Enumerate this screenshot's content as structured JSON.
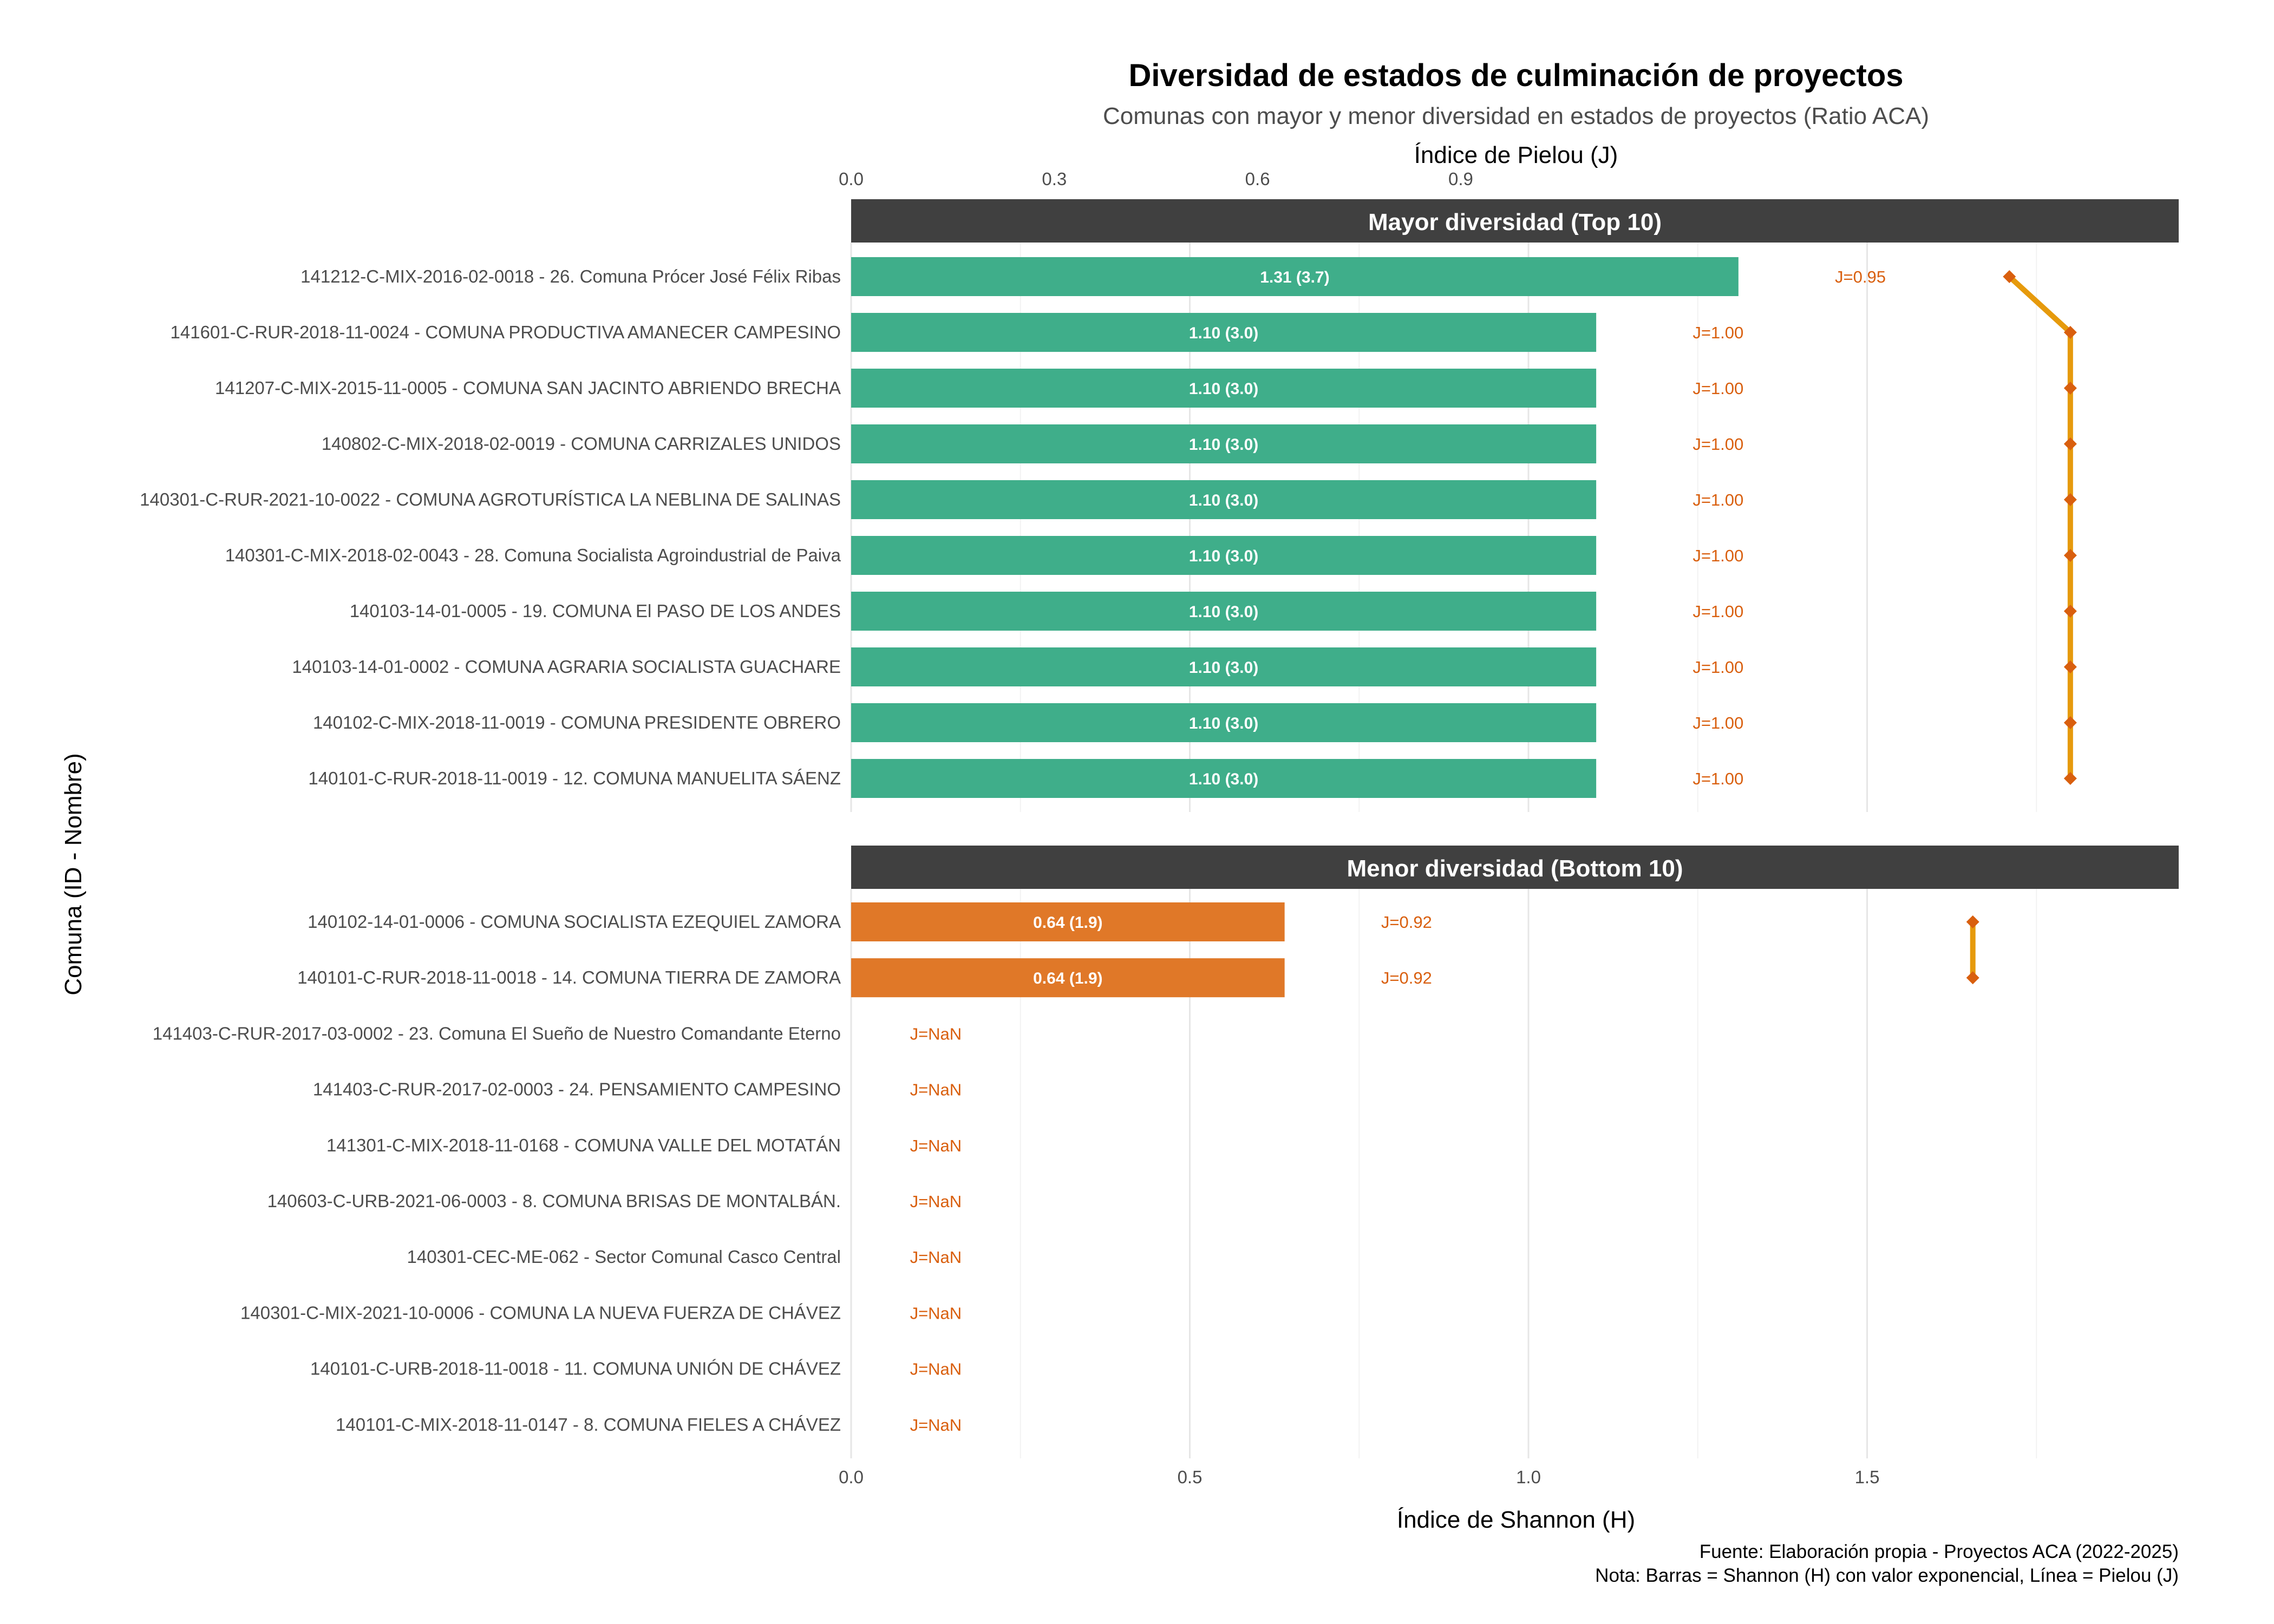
{
  "chart_data": {
    "type": "bar",
    "orientation": "horizontal",
    "title": "Diversidad de estados de culminación de proyectos",
    "subtitle": "Comunas con mayor y menor diversidad en estados de proyectos (Ratio ACA)",
    "xlabel": "Índice de Shannon (H)",
    "x2label": "Índice de Pielou (J)",
    "ylabel": "Comuna (ID - Nombre)",
    "xlim": [
      0,
      1.96
    ],
    "xticks": [
      0,
      0.5,
      1.0,
      1.5
    ],
    "xtick_labels": [
      "0.0",
      "0.5",
      "1.0",
      "1.5"
    ],
    "x2ticks": [
      0,
      0.3,
      0.6,
      0.9
    ],
    "x2tick_labels": [
      "0.0",
      "0.3",
      "0.6",
      "0.9"
    ],
    "pielou_scale_factor": 1.8,
    "grid": true,
    "caption_lines": [
      "Fuente: Elaboración propia - Proyectos ACA (2022-2025)",
      "Nota: Barras = Shannon (H) con valor exponencial, Línea = Pielou (J)"
    ],
    "colors": {
      "top_bar": "#3fae8a",
      "bottom_bar": "#e07828",
      "strip": "#404040",
      "j_label": "#d95f0e",
      "line": "#e69a0c",
      "point": "#d95f0e"
    },
    "panels": [
      {
        "name": "Mayor diversidad (Top 10)",
        "bar_color_key": "top_bar",
        "categories": [
          "141212-C-MIX-2016-02-0018 - 26. Comuna Prócer José Félix Ribas",
          "141601-C-RUR-2018-11-0024 - COMUNA PRODUCTIVA AMANECER CAMPESINO",
          "141207-C-MIX-2015-11-0005 - COMUNA SAN JACINTO ABRIENDO BRECHA",
          "140802-C-MIX-2018-02-0019 - COMUNA CARRIZALES UNIDOS",
          "140301-C-RUR-2021-10-0022 - COMUNA AGROTURÍSTICA LA NEBLINA DE SALINAS",
          "140301-C-MIX-2018-02-0043 - 28. Comuna Socialista Agroindustrial de Paiva",
          "140103-14-01-0005 - 19. COMUNA El PASO DE LOS ANDES",
          "140103-14-01-0002 - COMUNA AGRARIA SOCIALISTA GUACHARE",
          "140102-C-MIX-2018-11-0019 - COMUNA PRESIDENTE OBRERO",
          "140101-C-RUR-2018-11-0019 - 12. COMUNA MANUELITA SÁENZ"
        ],
        "shannon": [
          1.31,
          1.1,
          1.1,
          1.1,
          1.1,
          1.1,
          1.1,
          1.1,
          1.1,
          1.1
        ],
        "bar_labels": [
          "1.31 (3.7)",
          "1.10 (3.0)",
          "1.10 (3.0)",
          "1.10 (3.0)",
          "1.10 (3.0)",
          "1.10 (3.0)",
          "1.10 (3.0)",
          "1.10 (3.0)",
          "1.10 (3.0)",
          "1.10 (3.0)"
        ],
        "pielou": [
          0.95,
          1.0,
          1.0,
          1.0,
          1.0,
          1.0,
          1.0,
          1.0,
          1.0,
          1.0
        ],
        "j_labels": [
          "J=0.95",
          "J=1.00",
          "J=1.00",
          "J=1.00",
          "J=1.00",
          "J=1.00",
          "J=1.00",
          "J=1.00",
          "J=1.00",
          "J=1.00"
        ]
      },
      {
        "name": "Menor diversidad (Bottom 10)",
        "bar_color_key": "bottom_bar",
        "categories": [
          "140102-14-01-0006 - COMUNA SOCIALISTA EZEQUIEL ZAMORA",
          "140101-C-RUR-2018-11-0018 - 14. COMUNA TIERRA DE ZAMORA",
          "141403-C-RUR-2017-03-0002 - 23. Comuna El Sueño de Nuestro Comandante Eterno",
          "141403-C-RUR-2017-02-0003 - 24. PENSAMIENTO CAMPESINO",
          "141301-C-MIX-2018-11-0168 - COMUNA VALLE DEL MOTATÁN",
          "140603-C-URB-2021-06-0003 - 8. COMUNA BRISAS DE MONTALBÁN.",
          "140301-CEC-ME-062 - Sector Comunal Casco Central",
          "140301-C-MIX-2021-10-0006 - COMUNA LA NUEVA FUERZA DE CHÁVEZ",
          "140101-C-URB-2018-11-0018 - 11. COMUNA UNIÓN DE CHÁVEZ",
          "140101-C-MIX-2018-11-0147 - 8. COMUNA FIELES A CHÁVEZ"
        ],
        "shannon": [
          0.64,
          0.64,
          0,
          0,
          0,
          0,
          0,
          0,
          0,
          0
        ],
        "bar_labels": [
          "0.64 (1.9)",
          "0.64 (1.9)",
          "",
          "",
          "",
          "",
          "",
          "",
          "",
          ""
        ],
        "pielou": [
          0.92,
          0.92,
          null,
          null,
          null,
          null,
          null,
          null,
          null,
          null
        ],
        "j_labels": [
          "J=0.92",
          "J=0.92",
          "J=NaN",
          "J=NaN",
          "J=NaN",
          "J=NaN",
          "J=NaN",
          "J=NaN",
          "J=NaN",
          "J=NaN"
        ]
      }
    ]
  }
}
